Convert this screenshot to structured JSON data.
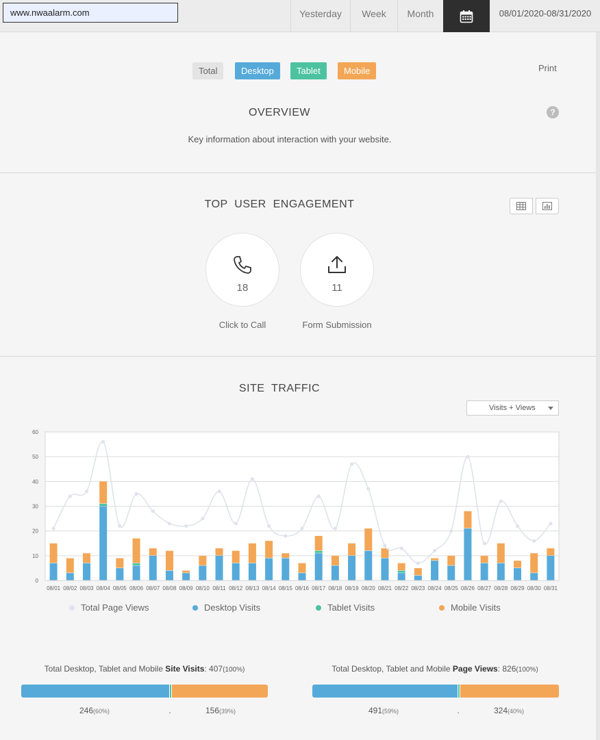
{
  "header": {
    "url_value": "www.nwaalarm.com",
    "ranges": [
      {
        "label": "Yesterday"
      },
      {
        "label": "Week"
      },
      {
        "label": "Month"
      }
    ],
    "calendar_icon": "calendar-icon",
    "date_range": "08/01/2020-08/31/2020"
  },
  "filters": {
    "total": "Total",
    "desktop": "Desktop",
    "tablet": "Tablet",
    "mobile": "Mobile",
    "print": "Print"
  },
  "overview": {
    "title": "OVERVIEW",
    "help": "?",
    "subtitle": "Key information about interaction with your website."
  },
  "engagement": {
    "title": "TOP  USER  ENGAGEMENT",
    "items": [
      {
        "icon": "phone-icon",
        "count": "18",
        "label": "Click to Call"
      },
      {
        "icon": "upload-icon",
        "count": "11",
        "label": "Form Submission"
      }
    ]
  },
  "traffic": {
    "title": "SITE  TRAFFIC",
    "select_value": "Visits + Views"
  },
  "colors": {
    "desktop": "#56aada",
    "tablet": "#4cc2a0",
    "mobile": "#f3a655",
    "page_views": "#dfe3ec"
  },
  "chart_data": {
    "type": "bar",
    "stacked": true,
    "categories": [
      "08/01",
      "08/02",
      "08/03",
      "08/04",
      "08/05",
      "08/06",
      "08/07",
      "08/08",
      "08/09",
      "08/10",
      "08/11",
      "08/12",
      "08/13",
      "08/14",
      "08/15",
      "08/16",
      "08/17",
      "08/18",
      "08/19",
      "08/20",
      "08/21",
      "08/22",
      "08/23",
      "08/24",
      "08/25",
      "08/26",
      "08/27",
      "08/28",
      "08/29",
      "08/30",
      "08/31"
    ],
    "ylim": [
      0,
      60
    ],
    "yticks": [
      0,
      10,
      20,
      30,
      40,
      50,
      60
    ],
    "grid": true,
    "legend_position": "bottom",
    "series": [
      {
        "name": "Desktop Visits",
        "values": [
          7,
          3,
          7,
          30,
          5,
          6,
          10,
          4,
          3,
          6,
          10,
          7,
          7,
          9,
          9,
          3,
          11,
          6,
          10,
          12,
          9,
          3,
          2,
          8,
          6,
          21,
          7,
          7,
          5,
          3,
          10
        ]
      },
      {
        "name": "Tablet Visits",
        "values": [
          0,
          0,
          0,
          1,
          0,
          1,
          0,
          0,
          0,
          0,
          0,
          0,
          0,
          0,
          0,
          0,
          1,
          0,
          0,
          0,
          0,
          1,
          0,
          0,
          0,
          0,
          0,
          0,
          0,
          0,
          0
        ]
      },
      {
        "name": "Mobile Visits",
        "values": [
          8,
          6,
          4,
          9,
          4,
          10,
          3,
          8,
          1,
          4,
          3,
          5,
          8,
          7,
          2,
          4,
          6,
          4,
          5,
          9,
          4,
          3,
          3,
          1,
          4,
          7,
          3,
          8,
          3,
          8,
          3
        ]
      }
    ],
    "line": {
      "name": "Total Page Views",
      "values": [
        21,
        34,
        36,
        56,
        22,
        35,
        28,
        23,
        22,
        25,
        36,
        23,
        41,
        22,
        18,
        21,
        34,
        21,
        47,
        37,
        14,
        13,
        7,
        12,
        20,
        50,
        15,
        32,
        22,
        16,
        23
      ]
    }
  },
  "totals": {
    "visits": {
      "prefix": "Total Desktop, Tablet and Mobile ",
      "bold": "Site Visits",
      "value": ": 407",
      "pct": "(100%)",
      "desktop_count": "246",
      "desktop_pct": "(60%)",
      "tablet_dot": ".",
      "mobile_count": "156",
      "mobile_pct": "(39%)",
      "desktop_share": 0.6,
      "tablet_share": 0.01,
      "mobile_share": 0.39
    },
    "views": {
      "prefix": "Total Desktop, Tablet and Mobile ",
      "bold": "Page Views",
      "value": ": 826",
      "pct": "(100%)",
      "desktop_count": "491",
      "desktop_pct": "(59%)",
      "tablet_dot": ".",
      "mobile_count": "324",
      "mobile_pct": "(40%)",
      "desktop_share": 0.59,
      "tablet_share": 0.01,
      "mobile_share": 0.4
    }
  }
}
